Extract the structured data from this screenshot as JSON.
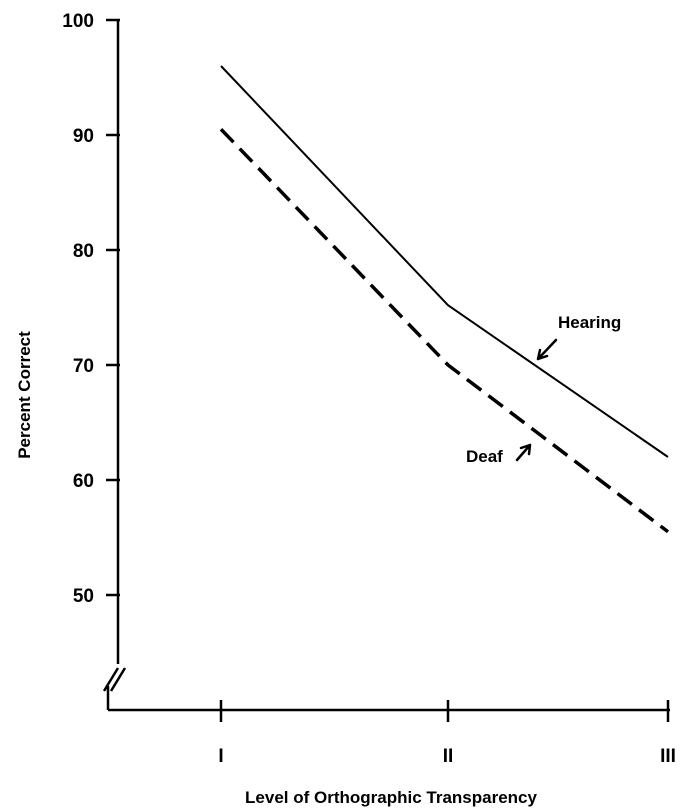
{
  "chart_data": {
    "type": "line",
    "title": "",
    "xlabel": "Level of Orthographic Transparency",
    "ylabel": "Percent Correct",
    "categories": [
      "I",
      "II",
      "III"
    ],
    "ylim": [
      40,
      100
    ],
    "yticks": [
      50,
      60,
      70,
      80,
      90,
      100
    ],
    "y_axis_break": true,
    "grid": false,
    "legend": "none",
    "series": [
      {
        "name": "Hearing",
        "style": "solid",
        "color": "#000000",
        "values": [
          96,
          75.2,
          62
        ]
      },
      {
        "name": "Deaf",
        "style": "dashed",
        "color": "#000000",
        "values": [
          90.5,
          70,
          55.5
        ]
      }
    ]
  }
}
